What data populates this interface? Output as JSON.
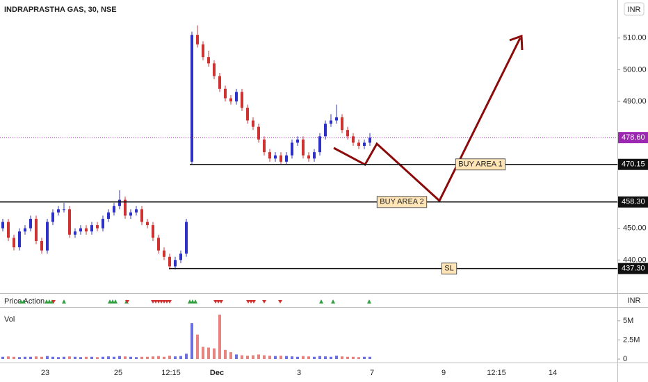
{
  "chart_data": {
    "type": "candlestick",
    "title": "INDRAPRASTHA GAS, 30, NSE",
    "currency": "INR",
    "up_color": "#2e31c8",
    "down_color": "#d03232",
    "ylim": [
      430,
      522
    ],
    "yticks": [
      {
        "value": 440,
        "label": "440.00"
      },
      {
        "value": 450,
        "label": "450.00"
      },
      {
        "value": 490,
        "label": "490.00"
      },
      {
        "value": 500,
        "label": "500.00"
      },
      {
        "value": 510,
        "label": "510.00"
      }
    ],
    "candles": [
      [
        450,
        453,
        449,
        452
      ],
      [
        452,
        453,
        446,
        447
      ],
      [
        447,
        448,
        443,
        444
      ],
      [
        444,
        450,
        443,
        449
      ],
      [
        449,
        451,
        448,
        450
      ],
      [
        450,
        454,
        449,
        453
      ],
      [
        453,
        454,
        445,
        446
      ],
      [
        446,
        447,
        442,
        443
      ],
      [
        443,
        453,
        442,
        452
      ],
      [
        452,
        456,
        451,
        455
      ],
      [
        455,
        457,
        454,
        456
      ],
      [
        456,
        458,
        455,
        456
      ],
      [
        456,
        457,
        447,
        448
      ],
      [
        448,
        450,
        447,
        449
      ],
      [
        449,
        451,
        448,
        450
      ],
      [
        450,
        451,
        448,
        449
      ],
      [
        449,
        452,
        448,
        451
      ],
      [
        451,
        452,
        449,
        450
      ],
      [
        450,
        454,
        449,
        453
      ],
      [
        453,
        456,
        452,
        455
      ],
      [
        455,
        458,
        454,
        457
      ],
      [
        457,
        462,
        456,
        459
      ],
      [
        459,
        460,
        453,
        454
      ],
      [
        454,
        456,
        453,
        455
      ],
      [
        455,
        457,
        454,
        456
      ],
      [
        456,
        457,
        451,
        452
      ],
      [
        452,
        453,
        450,
        451
      ],
      [
        451,
        452,
        446,
        447
      ],
      [
        447,
        448,
        442,
        443
      ],
      [
        443,
        444,
        440,
        441
      ],
      [
        441,
        442,
        437,
        438
      ],
      [
        438,
        441,
        437,
        440
      ],
      [
        440,
        443,
        439,
        442
      ],
      [
        442,
        453,
        441,
        452
      ],
      [
        471,
        512,
        470,
        511
      ],
      [
        511,
        514,
        507,
        508
      ],
      [
        508,
        509,
        503,
        504
      ],
      [
        504,
        506,
        501,
        502
      ],
      [
        502,
        503,
        497,
        498
      ],
      [
        498,
        499,
        493,
        494
      ],
      [
        494,
        495,
        490,
        491
      ],
      [
        491,
        492,
        489,
        490
      ],
      [
        490,
        494,
        489,
        493
      ],
      [
        493,
        494,
        487,
        488
      ],
      [
        488,
        489,
        483,
        484
      ],
      [
        484,
        485,
        481,
        482
      ],
      [
        482,
        483,
        477,
        478
      ],
      [
        478,
        479,
        473,
        474
      ],
      [
        474,
        475,
        471,
        472
      ],
      [
        472,
        474,
        471,
        473
      ],
      [
        473,
        474,
        470,
        471
      ],
      [
        471,
        474,
        470,
        473
      ],
      [
        473,
        478,
        472,
        477
      ],
      [
        477,
        479,
        476,
        478
      ],
      [
        478,
        479,
        472,
        473
      ],
      [
        473,
        474,
        471,
        472
      ],
      [
        472,
        475,
        471,
        474
      ],
      [
        474,
        480,
        473,
        479
      ],
      [
        479,
        484,
        478,
        483
      ],
      [
        483,
        486,
        482,
        484
      ],
      [
        484,
        489,
        483,
        485
      ],
      [
        485,
        486,
        480,
        481
      ],
      [
        481,
        482,
        478,
        479
      ],
      [
        479,
        480,
        476,
        477
      ],
      [
        477,
        478,
        475,
        476
      ],
      [
        476,
        478,
        475,
        477
      ],
      [
        477,
        480,
        476,
        478.6
      ]
    ],
    "last_price": {
      "value": 478.6,
      "label": "478.60"
    },
    "levels": [
      {
        "name": "BUY AREA 1",
        "value": 470.15,
        "label": "470.15"
      },
      {
        "name": "BUY AREA 2",
        "value": 458.3,
        "label": "458.30"
      },
      {
        "name": "SL",
        "value": 437.3,
        "label": "437.30"
      }
    ],
    "x_labels": [
      "23",
      "25",
      "12:15",
      "Dec",
      "3",
      "7",
      "9",
      "12:15",
      "14"
    ],
    "indicator": "Price Action",
    "volume": {
      "title": "Vol",
      "ylim": [
        0,
        6800000
      ],
      "yticks": [
        0,
        {
          "value": 2500000,
          "label": "2.5M"
        },
        {
          "value": 5000000,
          "label": "5M"
        }
      ],
      "values": [
        300000,
        350000,
        300000,
        250000,
        300000,
        300000,
        350000,
        300000,
        400000,
        300000,
        250000,
        300000,
        350000,
        300000,
        250000,
        300000,
        300000,
        250000,
        300000,
        350000,
        300000,
        400000,
        350000,
        300000,
        250000,
        300000,
        300000,
        350000,
        400000,
        300000,
        450000,
        350000,
        400000,
        700000,
        4700000,
        3200000,
        1600000,
        1500000,
        1400000,
        5800000,
        1200000,
        900000,
        600000,
        500000,
        450000,
        500000,
        600000,
        500000,
        450000,
        400000,
        450000,
        400000,
        350000,
        300000,
        400000,
        350000,
        300000,
        400000,
        350000,
        300000,
        450000,
        350000,
        300000,
        300000,
        250000,
        300000,
        300000
      ]
    }
  }
}
